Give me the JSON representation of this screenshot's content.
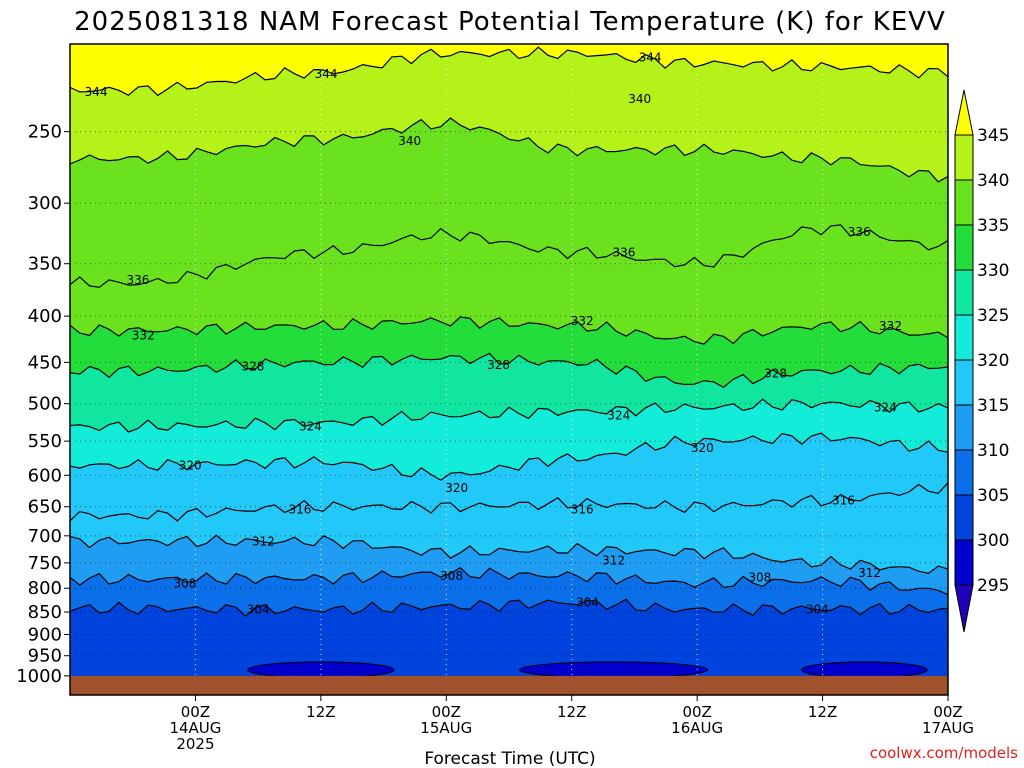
{
  "title": "2025081318 NAM Forecast Potential Temperature (K) for KEVV",
  "credit": "coolwx.com/models",
  "chart_data": {
    "type": "heatmap",
    "title": "2025081318 NAM Forecast Potential Temperature (K) for KEVV",
    "xlabel": "Forecast Time (UTC)",
    "ylabel": "",
    "x_range_hours": [
      -12,
      72
    ],
    "x_ticks": [
      {
        "hour": 0,
        "line1": "00Z",
        "line2": "14AUG",
        "line3": "2025"
      },
      {
        "hour": 12,
        "line1": "12Z",
        "line2": "",
        "line3": ""
      },
      {
        "hour": 24,
        "line1": "00Z",
        "line2": "15AUG",
        "line3": ""
      },
      {
        "hour": 36,
        "line1": "12Z",
        "line2": "",
        "line3": ""
      },
      {
        "hour": 48,
        "line1": "00Z",
        "line2": "16AUG",
        "line3": ""
      },
      {
        "hour": 60,
        "line1": "12Z",
        "line2": "",
        "line3": ""
      },
      {
        "hour": 72,
        "line1": "00Z",
        "line2": "17AUG",
        "line3": ""
      }
    ],
    "y_scale": "log-pressure (hPa, inverted)",
    "y_range": [
      1050,
      200
    ],
    "y_ticks": [
      "250",
      "300",
      "350",
      "400",
      "450",
      "500",
      "550",
      "600",
      "650",
      "700",
      "750",
      "800",
      "850",
      "900",
      "950",
      "1000"
    ],
    "grid": true,
    "colorbar": {
      "position": "right",
      "levels": [
        295,
        300,
        305,
        310,
        315,
        320,
        325,
        330,
        335,
        340,
        345
      ],
      "labels": [
        "295",
        "300",
        "305",
        "310",
        "315",
        "320",
        "325",
        "330",
        "335",
        "340",
        "345"
      ],
      "colors": [
        "#0000cc",
        "#0044dd",
        "#0a6fe8",
        "#1f9df2",
        "#22c8f8",
        "#12ecd8",
        "#10e6a0",
        "#22dd3a",
        "#6ae21e",
        "#b4f21a",
        "#ffff00"
      ],
      "extend_low_color": "#2200bb",
      "extend_high_color": "#ffff00"
    },
    "series": [
      {
        "level": 304,
        "x": [
          -6,
          12,
          24,
          36,
          48,
          60,
          72
        ],
        "y": [
          843,
          845,
          838,
          830,
          845,
          843,
          845
        ]
      },
      {
        "level": 308,
        "x": [
          -6,
          12,
          24,
          36,
          48,
          60,
          72
        ],
        "y": [
          782,
          780,
          770,
          775,
          790,
          785,
          805
        ]
      },
      {
        "level": 312,
        "x": [
          -6,
          12,
          24,
          36,
          48,
          60,
          72
        ],
        "y": [
          710,
          710,
          730,
          725,
          730,
          750,
          765
        ]
      },
      {
        "level": 316,
        "x": [
          -6,
          12,
          24,
          36,
          48,
          60,
          72
        ],
        "y": [
          665,
          650,
          650,
          645,
          650,
          640,
          620
        ]
      },
      {
        "level": 320,
        "x": [
          -6,
          12,
          24,
          36,
          48,
          60,
          72
        ],
        "y": [
          585,
          580,
          600,
          575,
          550,
          545,
          560
        ]
      },
      {
        "level": 324,
        "x": [
          -6,
          12,
          24,
          36,
          48,
          60,
          72
        ],
        "y": [
          530,
          525,
          515,
          510,
          505,
          500,
          505
        ]
      },
      {
        "level": 328,
        "x": [
          -6,
          12,
          24,
          36,
          48,
          60,
          72
        ],
        "y": [
          460,
          450,
          445,
          450,
          475,
          460,
          455
        ]
      },
      {
        "level": 332,
        "x": [
          -6,
          12,
          24,
          36,
          48,
          60,
          72
        ],
        "y": [
          415,
          410,
          405,
          410,
          425,
          410,
          420
        ]
      },
      {
        "level": 336,
        "x": [
          -6,
          12,
          24,
          36,
          48,
          60,
          72
        ],
        "y": [
          368,
          340,
          325,
          340,
          350,
          320,
          335
        ]
      },
      {
        "level": 340,
        "x": [
          -6,
          12,
          24,
          36,
          48,
          60,
          72
        ],
        "y": [
          268,
          255,
          245,
          262,
          262,
          268,
          280
        ]
      },
      {
        "level": 344,
        "x": [
          -6,
          12,
          24,
          36,
          48,
          60,
          72
        ],
        "y": [
          225,
          215,
          205,
          205,
          210,
          212,
          215
        ]
      }
    ],
    "contour_labels": [
      {
        "text": "344",
        "hour": -9.5,
        "p": 226
      },
      {
        "text": "344",
        "hour": 12.5,
        "p": 216
      },
      {
        "text": "344",
        "hour": 43.5,
        "p": 207
      },
      {
        "text": "340",
        "hour": 20.5,
        "p": 256
      },
      {
        "text": "340",
        "hour": 42.5,
        "p": 230
      },
      {
        "text": "336",
        "hour": -5.5,
        "p": 365
      },
      {
        "text": "336",
        "hour": 41,
        "p": 340
      },
      {
        "text": "336",
        "hour": 63.5,
        "p": 323
      },
      {
        "text": "332",
        "hour": -5,
        "p": 420
      },
      {
        "text": "332",
        "hour": 37,
        "p": 405
      },
      {
        "text": "332",
        "hour": 66.5,
        "p": 410
      },
      {
        "text": "328",
        "hour": 5.5,
        "p": 455
      },
      {
        "text": "328",
        "hour": 29,
        "p": 453
      },
      {
        "text": "328",
        "hour": 55.5,
        "p": 463
      },
      {
        "text": "324",
        "hour": 11,
        "p": 530
      },
      {
        "text": "324",
        "hour": 40.5,
        "p": 515
      },
      {
        "text": "324",
        "hour": 66,
        "p": 505
      },
      {
        "text": "320",
        "hour": -0.5,
        "p": 585
      },
      {
        "text": "320",
        "hour": 25,
        "p": 620
      },
      {
        "text": "320",
        "hour": 48.5,
        "p": 560
      },
      {
        "text": "316",
        "hour": 10,
        "p": 655
      },
      {
        "text": "316",
        "hour": 37,
        "p": 655
      },
      {
        "text": "316",
        "hour": 62,
        "p": 640
      },
      {
        "text": "312",
        "hour": 6.5,
        "p": 710
      },
      {
        "text": "312",
        "hour": 40,
        "p": 745
      },
      {
        "text": "312",
        "hour": 64.5,
        "p": 770
      },
      {
        "text": "308",
        "hour": -1,
        "p": 790
      },
      {
        "text": "308",
        "hour": 24.5,
        "p": 775
      },
      {
        "text": "308",
        "hour": 54,
        "p": 778
      },
      {
        "text": "304",
        "hour": 6,
        "p": 845
      },
      {
        "text": "304",
        "hour": 37.5,
        "p": 830
      },
      {
        "text": "304",
        "hour": 59.5,
        "p": 845
      }
    ]
  }
}
